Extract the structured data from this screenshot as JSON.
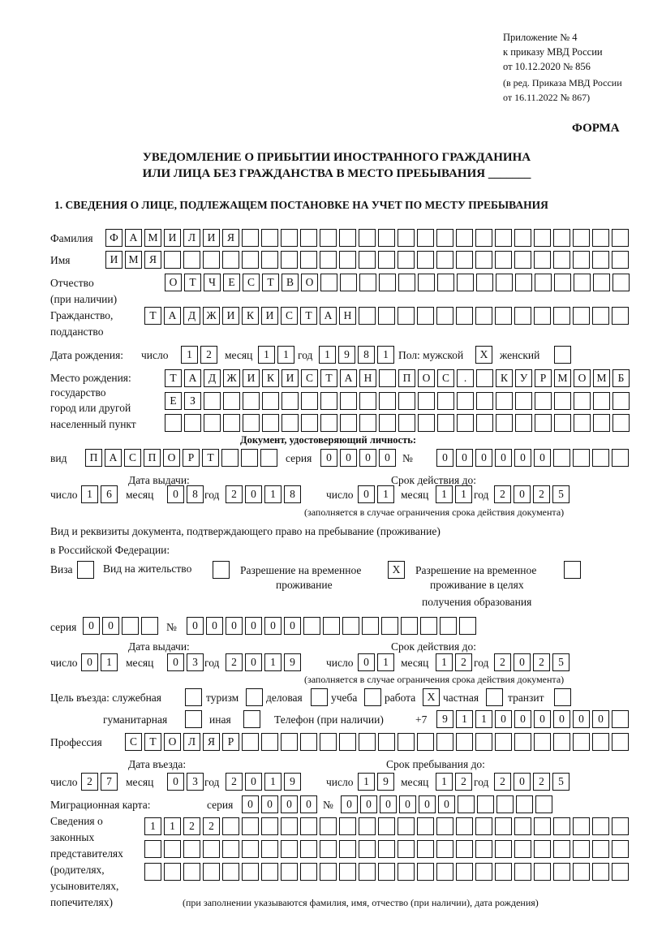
{
  "header": {
    "line1": "Приложение № 4",
    "line2": "к приказу МВД России",
    "line3": "от 10.12.2020 № 856",
    "line4": "(в ред. Приказа МВД России",
    "line5": "от 16.11.2022 № 867)",
    "forma": "ФОРМА"
  },
  "title": {
    "line1": "УВЕДОМЛЕНИЕ О ПРИБЫТИИ ИНОСТРАННОГО ГРАЖДАНИНА",
    "line2": "ИЛИ ЛИЦА БЕЗ ГРАЖДАНСТВА В МЕСТО ПРЕБЫВАНИЯ _______"
  },
  "section1": "1. СВЕДЕНИЯ О ЛИЦЕ, ПОДЛЕЖАЩЕМ ПОСТАНОВКЕ НА УЧЕТ ПО МЕСТУ ПРЕБЫВАНИЯ",
  "labels": {
    "surname": "Фамилия",
    "name": "Имя",
    "patronymic": "Отчество",
    "patronymic2": "(при наличии)",
    "citizenship": "Гражданство,",
    "citizenship2": "подданство",
    "birth_date": "Дата рождения:",
    "day": "число",
    "month": "месяц",
    "year": "год",
    "sex": "Пол: мужской",
    "female": "женский",
    "birthplace1": "Место рождения:",
    "birthplace2": "государство",
    "birthplace3": "город или другой",
    "birthplace4": "населенный пункт",
    "id_doc": "Документ, удостоверяющий личность:",
    "kind": "вид",
    "series": "серия",
    "number": "№",
    "issue_date": "Дата выдачи:",
    "valid_until": "Срок действия до:",
    "validity_note": "(заполняется в случае ограничения срока действия документа)",
    "residence_doc1": "Вид и реквизиты документа, подтверждающего право на пребывание (проживание)",
    "residence_doc2": "в Российской Федерации:",
    "visa": "Виза",
    "residence_permit": "Вид на жительство",
    "temp_permit1": "Разрешение на временное",
    "temp_permit2": "проживание",
    "temp_edu1": "Разрешение на временное",
    "temp_edu2": "проживание в целях",
    "temp_edu3": "получения образования",
    "purpose": "Цель въезда: служебная",
    "tourism": "туризм",
    "business": "деловая",
    "study": "учеба",
    "work": "работа",
    "private": "частная",
    "transit": "транзит",
    "humanitarian": "гуманитарная",
    "other": "иная",
    "phone": "Телефон (при наличии)",
    "phone_prefix": "+7",
    "profession": "Профессия",
    "entry_date": "Дата въезда:",
    "stay_until": "Срок пребывания до:",
    "migration_card": "Миграционная карта:",
    "reps1": "Сведения о",
    "reps2": "законных",
    "reps3": "представителях",
    "reps4": "(родителях,",
    "reps5": "усыновителях,",
    "reps6": "попечителях)",
    "reps_note": "(при заполнении указываются фамилия, имя, отчество (при наличии), дата рождения)"
  },
  "values": {
    "surname": "ФАМИЛИЯ",
    "name": "ИМЯ",
    "patronymic": "ОТЧЕСТВО",
    "citizenship": "ТАДЖИКИСТАН",
    "birth_day": "12",
    "birth_month": "11",
    "birth_year": "1981",
    "sex_male": "X",
    "sex_female": "",
    "birthplace1": "ТАДЖИКИСТАН ПОС. КУРМОМБ",
    "birthplace2": "ЕЗ",
    "birthplace3": "",
    "doc_kind": "ПАСПОРТ",
    "doc_series": "0000",
    "doc_number": "000000",
    "doc_issue_day": "16",
    "doc_issue_month": "08",
    "doc_issue_year": "2018",
    "doc_valid_day": "01",
    "doc_valid_month": "11",
    "doc_valid_year": "2025",
    "visa": "",
    "residence_permit": "",
    "temp_permit": "X",
    "temp_edu": "",
    "res_series": "00",
    "res_number": "000000",
    "res_issue_day": "01",
    "res_issue_month": "03",
    "res_issue_year": "2019",
    "res_valid_day": "01",
    "res_valid_month": "12",
    "res_valid_year": "2025",
    "purpose_service": "",
    "purpose_tourism": "",
    "purpose_business": "",
    "purpose_study": "",
    "purpose_work": "X",
    "purpose_private": "",
    "purpose_transit": "",
    "purpose_humanitarian": "",
    "purpose_other": "",
    "phone": "911000000",
    "profession": "СТОЛЯР",
    "entry_day": "27",
    "entry_month": "03",
    "entry_year": "2019",
    "stay_day": "19",
    "stay_month": "12",
    "stay_year": "2025",
    "mig_series": "0000",
    "mig_number": "000000",
    "reps1": "1122",
    "reps2": "",
    "reps3": ""
  }
}
